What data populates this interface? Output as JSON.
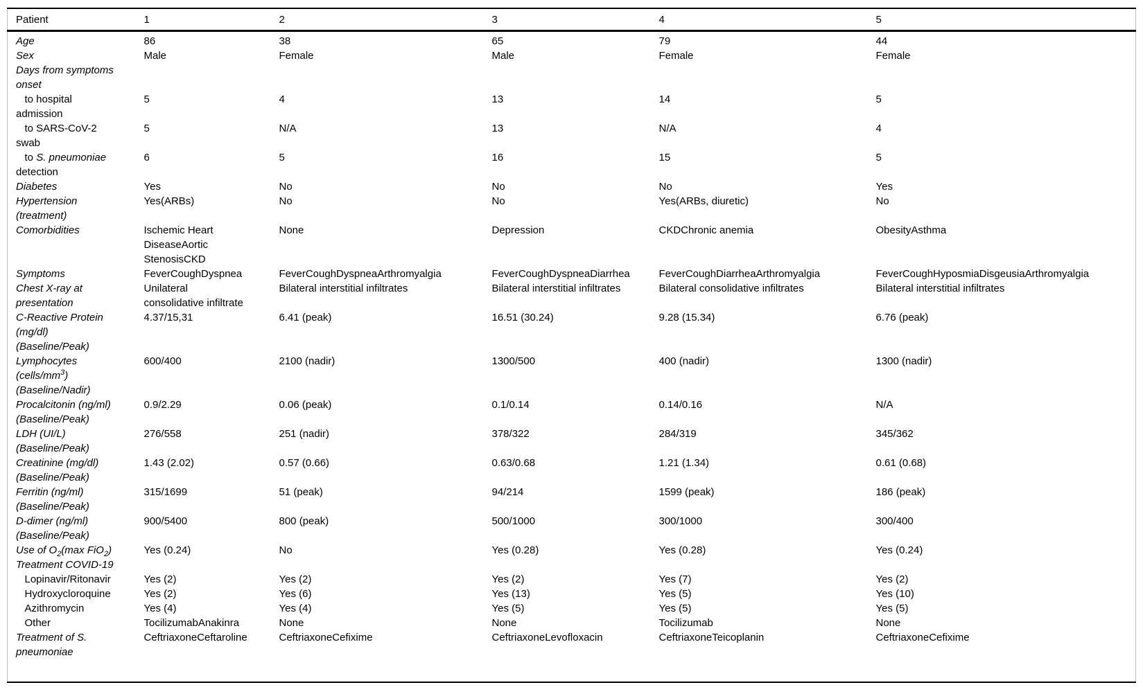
{
  "table": {
    "header": [
      "Patient",
      "1",
      "2",
      "3",
      "4",
      "5"
    ],
    "rows": [
      {
        "label_html": "<i>Age</i>",
        "values": [
          "86",
          "38",
          "65",
          "79",
          "44"
        ]
      },
      {
        "label_html": "<i>Sex</i>",
        "values": [
          "Male",
          "Female",
          "Male",
          "Female",
          "Female"
        ]
      },
      {
        "label_html": "<i>Days from symptoms onset</i>",
        "values": [
          "",
          "",
          "",
          "",
          ""
        ]
      },
      {
        "label_html": "&nbsp;&nbsp;&nbsp;to hospital<br>admission",
        "values": [
          "5",
          "4",
          "13",
          "14",
          "5"
        ]
      },
      {
        "label_html": "&nbsp;&nbsp;&nbsp;to SARS-CoV-2<br>swab",
        "values": [
          "5",
          "N/A",
          "13",
          "N/A",
          "4"
        ]
      },
      {
        "label_html": "&nbsp;&nbsp;&nbsp;to <i>S. pneumoniae</i><br>detection",
        "values": [
          "6",
          "5",
          "16",
          "15",
          "5"
        ]
      },
      {
        "label_html": "<i>Diabetes</i>",
        "values": [
          "Yes",
          "No",
          "No",
          "No",
          "Yes"
        ]
      },
      {
        "label_html": "<i>Hypertension<br>(treatment)</i>",
        "values": [
          "Yes(ARBs)",
          "No",
          "No",
          "Yes(ARBs, diuretic)",
          "No"
        ]
      },
      {
        "label_html": "<i>Comorbidities</i>",
        "values": [
          "Ischemic Heart<br>DiseaseAortic<br>StenosisCKD",
          "None",
          "Depression",
          "CKDChronic anemia",
          "ObesityAsthma"
        ]
      },
      {
        "label_html": "<i>Symptoms</i>",
        "values": [
          "FeverCoughDyspnea",
          "FeverCoughDyspneaArthromyalgia",
          "FeverCoughDyspneaDiarrhea",
          "FeverCoughDiarrheaArthromyalgia",
          "FeverCoughHyposmiaDisgeusiaArthromyalgia"
        ]
      },
      {
        "label_html": "<i>Chest X-ray at<br>presentation</i>",
        "values": [
          "Unilateral<br>consolidative infiltrate",
          "Bilateral interstitial infiltrates",
          "Bilateral interstitial infiltrates",
          "Bilateral consolidative infiltrates",
          "Bilateral interstitial infiltrates"
        ]
      },
      {
        "label_html": "<i>C-Reactive Protein<br>(mg/dl)<br>(Baseline/Peak)</i>",
        "values": [
          "4.37/15,31",
          "6.41 (peak)",
          "16.51 (30.24)",
          "9.28 (15.34)",
          "6.76 (peak)"
        ]
      },
      {
        "label_html": "<i>Lymphocytes<br>(cells/mm<sup>3</sup>)<br>(Baseline/Nadir)</i>",
        "values": [
          "600/400",
          "2100 (nadir)",
          "1300/500",
          "400 (nadir)",
          "1300 (nadir)"
        ]
      },
      {
        "label_html": "<i>Procalcitonin (ng/ml)<br>(Baseline/Peak)</i>",
        "values": [
          "0.9/2.29",
          "0.06 (peak)",
          "0.1/0.14",
          "0.14/0.16",
          "N/A"
        ]
      },
      {
        "label_html": "<i>LDH (UI/L)<br>(Baseline/Peak)</i>",
        "values": [
          "276/558",
          "251 (nadir)",
          "378/322",
          "284/319",
          "345/362"
        ]
      },
      {
        "label_html": "<i>Creatinine (mg/dl)<br>(Baseline/Peak)</i>",
        "values": [
          "1.43 (2.02)",
          "0.57 (0.66)",
          "0.63/0.68",
          "1.21 (1.34)",
          "0.61 (0.68)"
        ]
      },
      {
        "label_html": "<i>Ferritin (ng/ml)<br>(Baseline/Peak)</i>",
        "values": [
          "315/1699",
          "51 (peak)",
          "94/214",
          "1599 (peak)",
          "186 (peak)"
        ]
      },
      {
        "label_html": "<i>D-dimer (ng/ml)<br>(Baseline/Peak)</i>",
        "values": [
          "900/5400",
          "800 (peak)",
          "500/1000",
          "300/1000",
          "300/400"
        ]
      },
      {
        "label_html": "<i>Use of O<sub>2</sub>(max FiO<sub>2</sub>)</i>",
        "values": [
          "Yes (0.24)",
          "No",
          "Yes (0.28)",
          "Yes (0.28)",
          "Yes (0.24)"
        ]
      },
      {
        "label_html": "<i>Treatment COVID-19</i>",
        "values": [
          "",
          "",
          "",
          "",
          ""
        ]
      },
      {
        "label_html": "&nbsp;&nbsp;&nbsp;Lopinavir/Ritonavir",
        "values": [
          "Yes (2)",
          "Yes (2)",
          "Yes (2)",
          "Yes (7)",
          "Yes (2)"
        ]
      },
      {
        "label_html": "&nbsp;&nbsp;&nbsp;Hydroxycloroquine",
        "values": [
          "Yes (2)",
          "Yes (6)",
          "Yes (13)",
          "Yes (5)",
          "Yes (10)"
        ]
      },
      {
        "label_html": "&nbsp;&nbsp;&nbsp;Azithromycin",
        "values": [
          "Yes (4)",
          "Yes (4)",
          "Yes (5)",
          "Yes (5)",
          "Yes (5)"
        ]
      },
      {
        "label_html": "&nbsp;&nbsp;&nbsp;Other",
        "values": [
          "TocilizumabAnakinra",
          "None",
          "None",
          "Tocilizumab",
          "None"
        ]
      },
      {
        "label_html": "<i>Treatment of S.<br>pneumoniae</i>",
        "values": [
          "CeftriaxoneCeftaroline",
          "CeftriaxoneCefixime",
          "CeftriaxoneLevofloxacin",
          "CeftriaxoneTeicoplanin",
          "CeftriaxoneCefixime"
        ]
      }
    ]
  }
}
